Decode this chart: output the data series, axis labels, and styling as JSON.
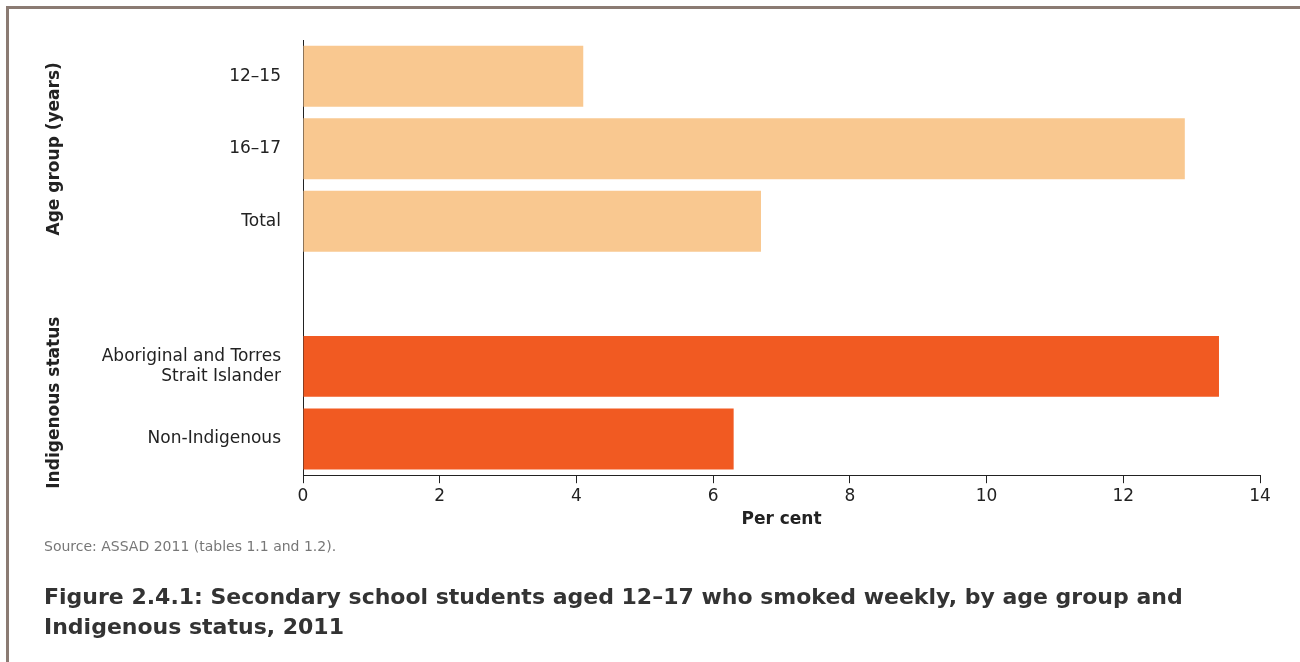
{
  "chart_data": {
    "type": "bar",
    "orientation": "horizontal",
    "title": "Figure 2.4.1: Secondary school students aged 12–17 who smoked weekly, by age group and Indigenous status, 2011",
    "xlabel": "Per cent",
    "categories": [
      "12–15",
      "16–17",
      "Total",
      null,
      "Aboriginal and Torres Strait Islander",
      "Non-Indigenous"
    ],
    "values": [
      4.1,
      12.9,
      6.7,
      null,
      13.4,
      6.3
    ],
    "colors": [
      "#f9c890",
      "#f9c890",
      "#f9c890",
      "#f9c890",
      "#f15a22",
      "#f15a22"
    ],
    "xlim": [
      0,
      14
    ],
    "xticks": [
      0,
      2,
      4,
      6,
      8,
      10,
      12,
      14
    ],
    "grid": false,
    "legend": false,
    "annotations": [
      "Age group (years)",
      "Indigenous status",
      "Source: ASSAD 2011 (tables 1.1 and 1.2)."
    ]
  }
}
